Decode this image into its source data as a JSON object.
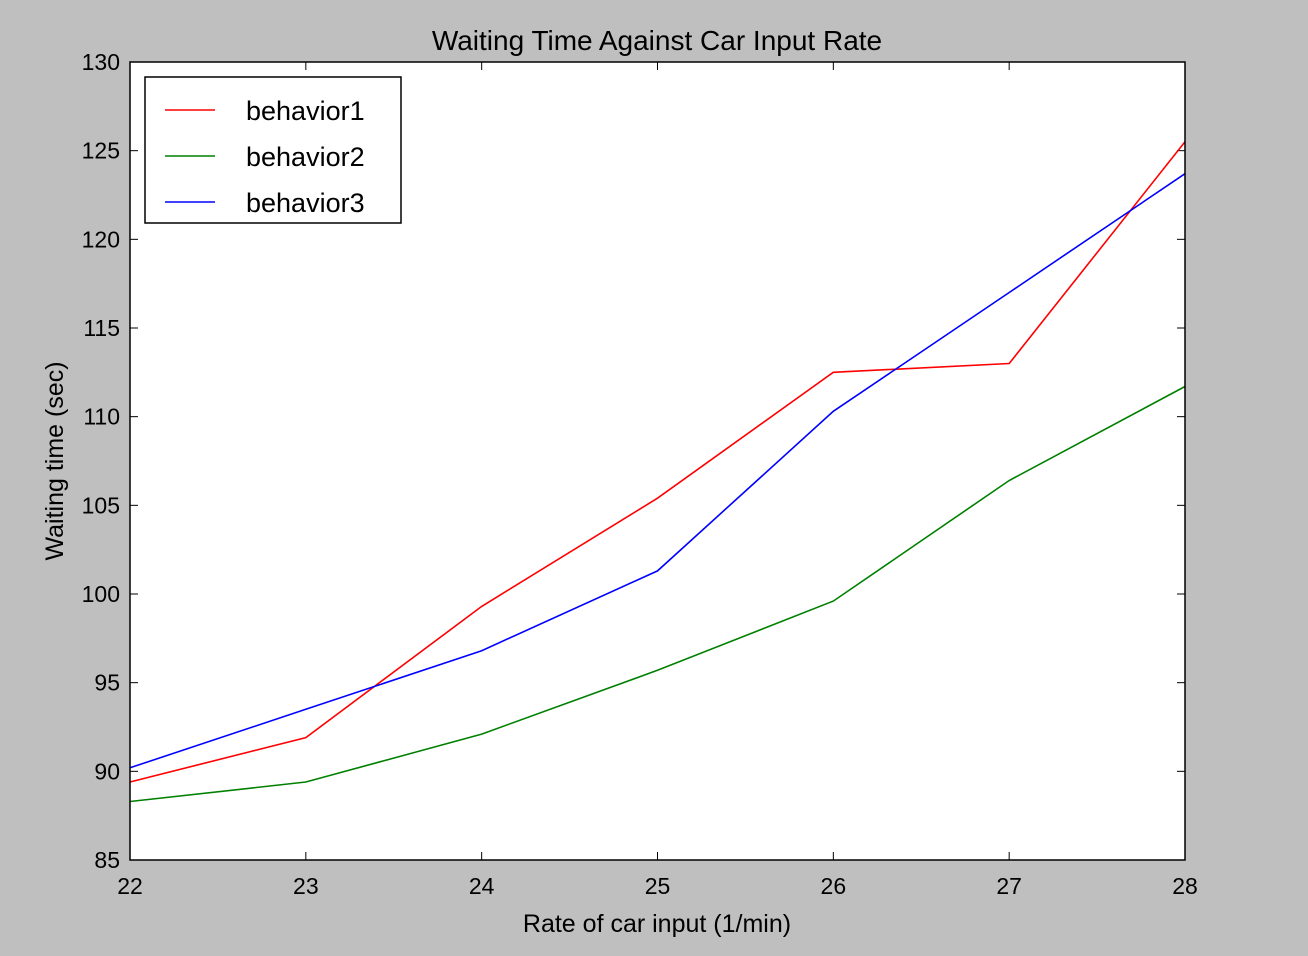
{
  "chart_data": {
    "type": "line",
    "title": "Waiting Time Against Car Input Rate",
    "xlabel": "Rate of car input (1/min)",
    "ylabel": "Waiting time (sec)",
    "xlim": [
      22,
      28
    ],
    "ylim": [
      85,
      130
    ],
    "xticks": [
      22,
      23,
      24,
      25,
      26,
      27,
      28
    ],
    "yticks": [
      85,
      90,
      95,
      100,
      105,
      110,
      115,
      120,
      125,
      130
    ],
    "grid": false,
    "legend_position": "top-left",
    "x": [
      22,
      23,
      24,
      25,
      26,
      27,
      28
    ],
    "series": [
      {
        "name": "behavior1",
        "color": "#ff0000",
        "values": [
          89.4,
          91.9,
          99.3,
          105.4,
          112.5,
          113.0,
          125.5
        ]
      },
      {
        "name": "behavior2",
        "color": "#008000",
        "values": [
          88.3,
          89.4,
          92.1,
          95.7,
          99.6,
          106.4,
          111.7
        ]
      },
      {
        "name": "behavior3",
        "color": "#0000ff",
        "values": [
          90.2,
          93.5,
          96.8,
          101.3,
          110.3,
          117.0,
          123.7
        ]
      }
    ]
  }
}
